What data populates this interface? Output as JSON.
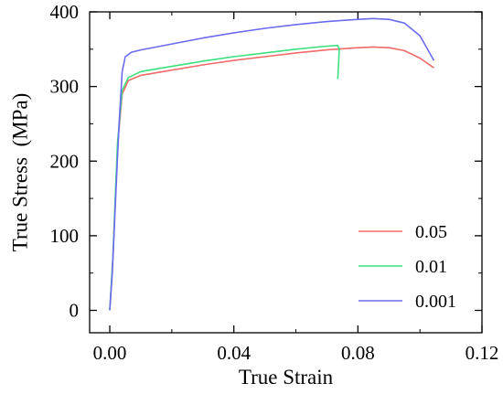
{
  "chart_data": {
    "type": "line",
    "title": "",
    "xlabel": "True Strain",
    "ylabel": "True Stress  (MPa)",
    "xlim": [
      -0.0065,
      0.12
    ],
    "ylim": [
      -30,
      400
    ],
    "xticks": [
      0.0,
      0.04,
      0.08,
      0.12
    ],
    "xtick_labels": [
      "0.00",
      "0.04",
      "0.08",
      "0.12"
    ],
    "yticks": [
      0,
      100,
      200,
      300,
      400
    ],
    "ytick_labels": [
      "0",
      "100",
      "200",
      "300",
      "400"
    ],
    "grid": false,
    "legend_position": "bottom-right",
    "series": [
      {
        "name": "0.05",
        "color": "#f26b6b",
        "points": [
          [
            0.0,
            0
          ],
          [
            0.001,
            70
          ],
          [
            0.0025,
            220
          ],
          [
            0.004,
            290
          ],
          [
            0.006,
            308
          ],
          [
            0.01,
            315
          ],
          [
            0.02,
            322
          ],
          [
            0.03,
            329
          ],
          [
            0.04,
            335
          ],
          [
            0.05,
            340
          ],
          [
            0.06,
            345
          ],
          [
            0.07,
            349
          ],
          [
            0.08,
            352
          ],
          [
            0.085,
            353
          ],
          [
            0.09,
            352
          ],
          [
            0.095,
            348
          ],
          [
            0.1,
            338
          ],
          [
            0.1045,
            325
          ]
        ]
      },
      {
        "name": "0.01",
        "color": "#3ce07e",
        "points": [
          [
            0.0,
            0
          ],
          [
            0.001,
            70
          ],
          [
            0.0025,
            225
          ],
          [
            0.004,
            295
          ],
          [
            0.006,
            312
          ],
          [
            0.01,
            320
          ],
          [
            0.02,
            327
          ],
          [
            0.03,
            334
          ],
          [
            0.04,
            340
          ],
          [
            0.05,
            345
          ],
          [
            0.06,
            350
          ],
          [
            0.07,
            354
          ],
          [
            0.0735,
            355
          ],
          [
            0.074,
            350
          ],
          [
            0.0738,
            332
          ],
          [
            0.0735,
            310
          ]
        ]
      },
      {
        "name": "0.001",
        "color": "#6b6bf2",
        "points": [
          [
            0.0,
            0
          ],
          [
            0.0008,
            50
          ],
          [
            0.002,
            160
          ],
          [
            0.003,
            250
          ],
          [
            0.004,
            320
          ],
          [
            0.005,
            340
          ],
          [
            0.007,
            346
          ],
          [
            0.01,
            349
          ],
          [
            0.02,
            357
          ],
          [
            0.03,
            365
          ],
          [
            0.04,
            372
          ],
          [
            0.05,
            378
          ],
          [
            0.06,
            383
          ],
          [
            0.07,
            387
          ],
          [
            0.08,
            390
          ],
          [
            0.085,
            391
          ],
          [
            0.09,
            390
          ],
          [
            0.095,
            385
          ],
          [
            0.1,
            368
          ],
          [
            0.1045,
            335
          ]
        ]
      }
    ]
  }
}
